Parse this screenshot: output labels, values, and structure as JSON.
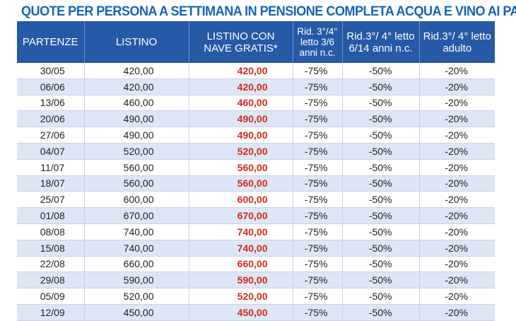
{
  "title": "QUOTE PER PERSONA A SETTIMANA IN PENSIONE COMPLETA ACQUA E VINO AI PASTI",
  "colors": {
    "header_bg": "#2659a6",
    "title": "#1565b8",
    "highlight": "#d12a1c",
    "row_alt": "#dde6f5"
  },
  "table": {
    "headers": [
      [
        "PARTENZE"
      ],
      [
        "LISTINO"
      ],
      [
        "LISTINO CON",
        "NAVE GRATIS*"
      ],
      [
        "Rid. 3°/4°",
        "letto 3/6",
        "anni n.c."
      ],
      [
        "Rid.3°/ 4° letto",
        "6/14 anni n.c."
      ],
      [
        "Rid.3°/ 4° letto",
        "adulto"
      ]
    ],
    "rows": [
      [
        "30/05",
        "420,00",
        "420,00",
        "-75%",
        "-50%",
        "-20%"
      ],
      [
        "06/06",
        "420,00",
        "420,00",
        "-75%",
        "-50%",
        "-20%"
      ],
      [
        "13/06",
        "460,00",
        "460,00",
        "-75%",
        "-50%",
        "-20%"
      ],
      [
        "20/06",
        "490,00",
        "490,00",
        "-75%",
        "-50%",
        "-20%"
      ],
      [
        "27/06",
        "490,00",
        "490,00",
        "-75%",
        "-50%",
        "-20%"
      ],
      [
        "04/07",
        "520,00",
        "520,00",
        "-75%",
        "-50%",
        "-20%"
      ],
      [
        "11/07",
        "560,00",
        "560,00",
        "-75%",
        "-50%",
        "-20%"
      ],
      [
        "18/07",
        "560,00",
        "560,00",
        "-75%",
        "-50%",
        "-20%"
      ],
      [
        "25/07",
        "600,00",
        "600,00",
        "-75%",
        "-50%",
        "-20%"
      ],
      [
        "01/08",
        "670,00",
        "670,00",
        "-75%",
        "-50%",
        "-20%"
      ],
      [
        "08/08",
        "740,00",
        "740,00",
        "-75%",
        "-50%",
        "-20%"
      ],
      [
        "15/08",
        "740,00",
        "740,00",
        "-75%",
        "-50%",
        "-20%"
      ],
      [
        "22/08",
        "660,00",
        "660,00",
        "-75%",
        "-50%",
        "-20%"
      ],
      [
        "29/08",
        "590,00",
        "590,00",
        "-75%",
        "-50%",
        "-20%"
      ],
      [
        "05/09",
        "520,00",
        "520,00",
        "-75%",
        "-50%",
        "-20%"
      ],
      [
        "12/09",
        "450,00",
        "450,00",
        "-75%",
        "-50%",
        "-20%"
      ]
    ]
  }
}
